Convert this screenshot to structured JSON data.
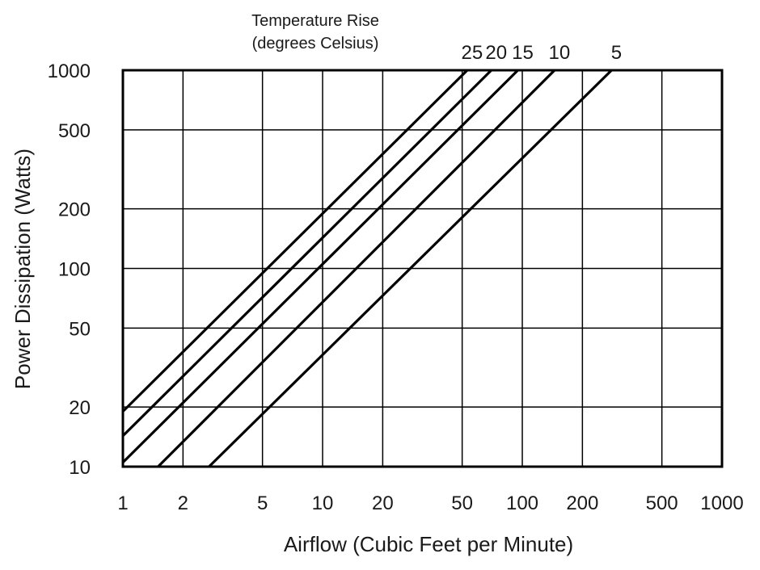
{
  "chart_data": {
    "type": "line",
    "title": "",
    "legend_title_line1": "Temperature Rise",
    "legend_title_line2": "(degrees Celsius)",
    "legend_placement": "top-center",
    "xlabel": "Airflow (Cubic Feet per Minute)",
    "ylabel": "Power Dissipation (Watts)",
    "x_scale": "log",
    "y_scale": "log",
    "xlim": [
      1,
      1000
    ],
    "ylim": [
      10,
      1000
    ],
    "grid": true,
    "x_ticks": [
      1,
      2,
      5,
      10,
      20,
      50,
      100,
      200,
      500,
      1000
    ],
    "x_tick_labels": [
      "1",
      "2",
      "5",
      "10",
      "20",
      "50",
      "100",
      "200",
      "500",
      "1000"
    ],
    "y_ticks": [
      10,
      20,
      50,
      100,
      200,
      500,
      1000
    ],
    "y_tick_labels": [
      "10",
      "20",
      "50",
      "100",
      "200",
      "500",
      "1000"
    ],
    "series": [
      {
        "name": "25",
        "x": [
          1,
          53
        ],
        "y": [
          19,
          1000
        ]
      },
      {
        "name": "20",
        "x": [
          1,
          70
        ],
        "y": [
          14.3,
          1000
        ]
      },
      {
        "name": "15",
        "x": [
          1,
          95
        ],
        "y": [
          10.5,
          1000
        ]
      },
      {
        "name": "10",
        "x": [
          1.5,
          145
        ],
        "y": [
          10,
          1000
        ]
      },
      {
        "name": "5",
        "x": [
          2.7,
          280
        ],
        "y": [
          10,
          1000
        ]
      }
    ]
  }
}
